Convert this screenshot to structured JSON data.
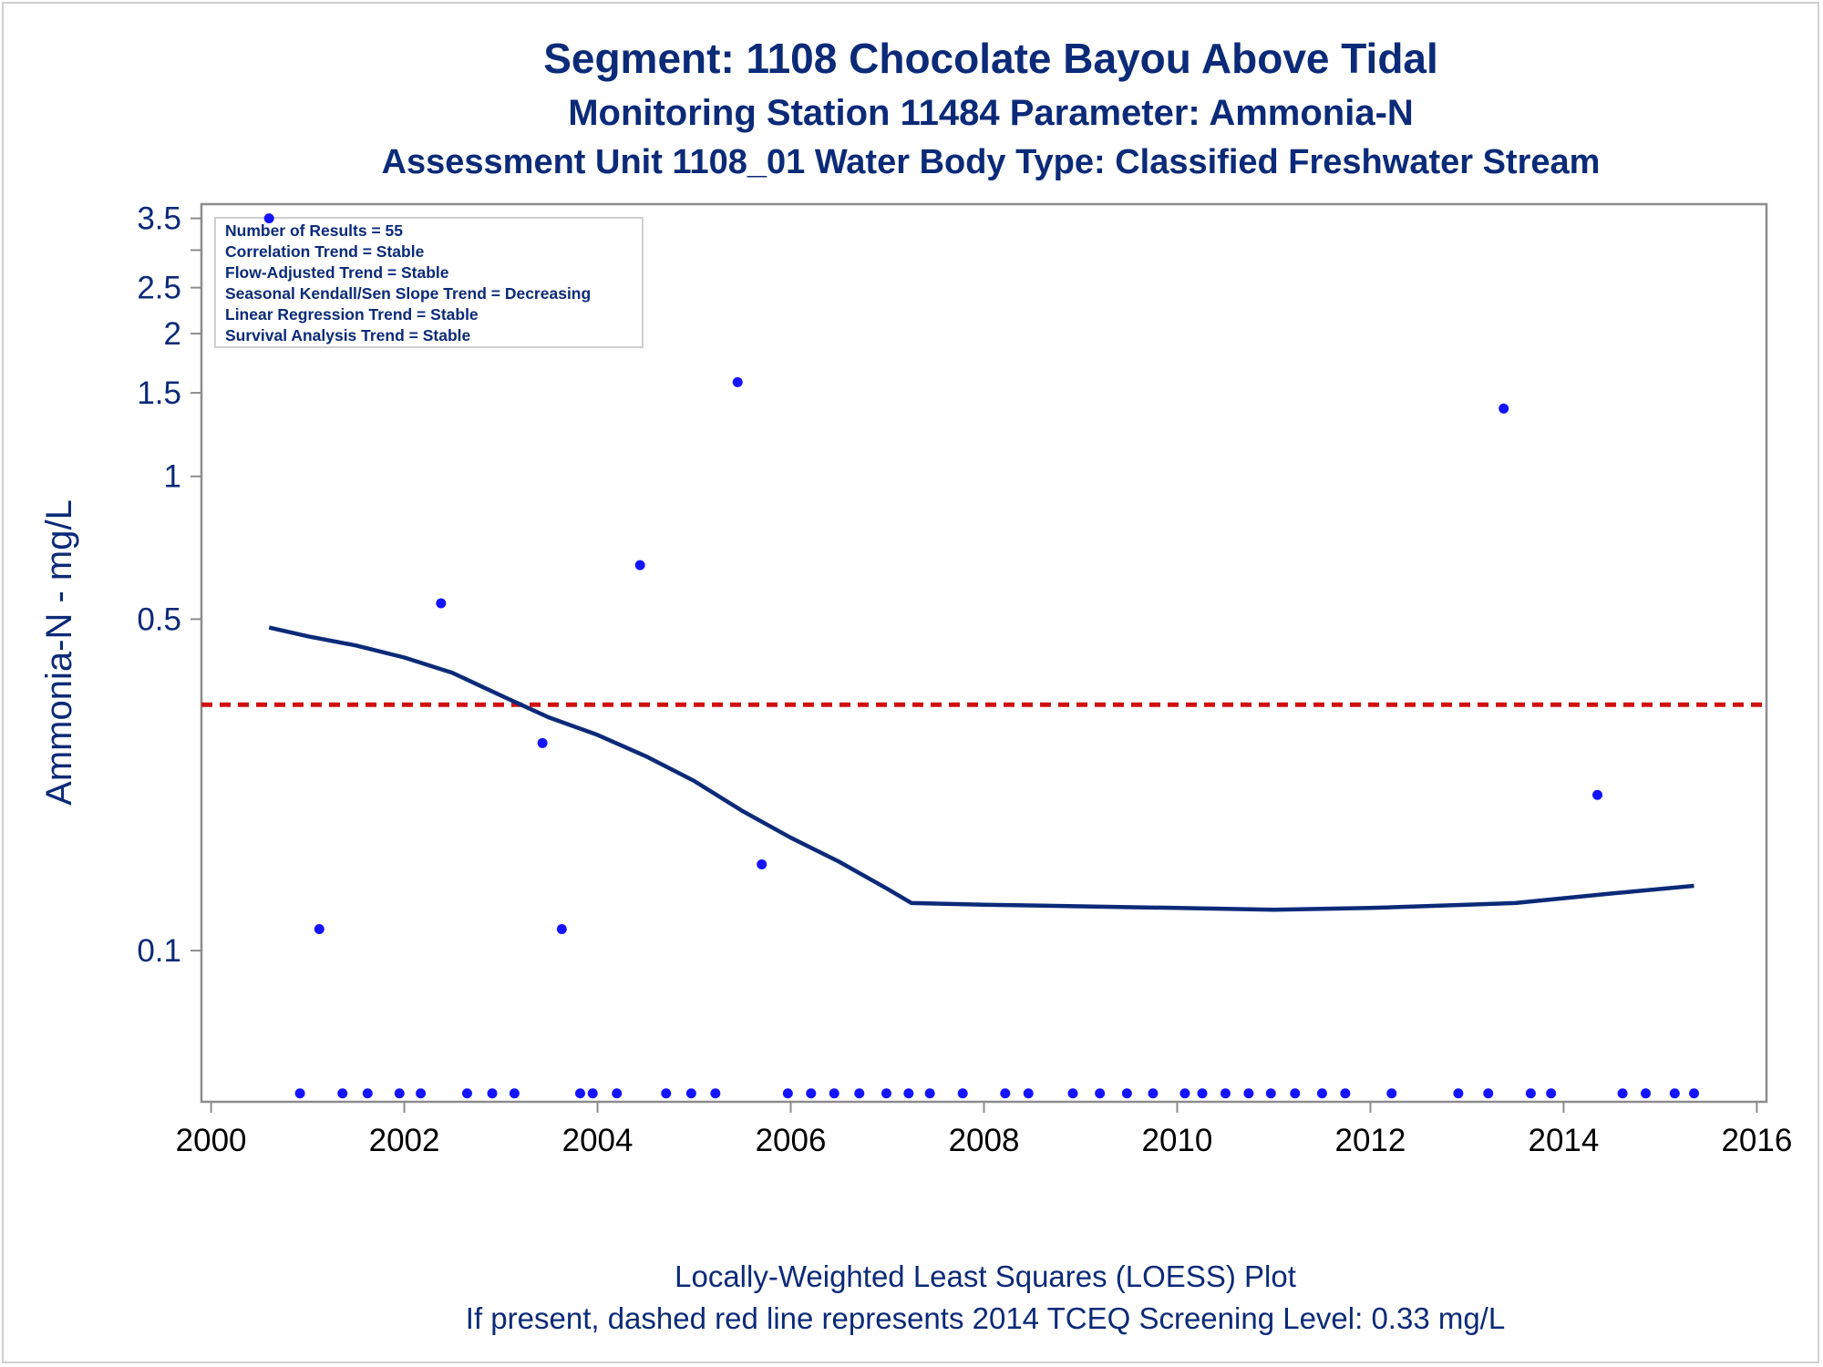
{
  "colors": {
    "text": "#0b2a78",
    "axis": "#8c8c8c",
    "points": "#1414ff",
    "loess": "#0b2a78",
    "screening": "#d01010",
    "tick_text": "#000000",
    "frame": "#d0d0d0"
  },
  "chart_data": {
    "type": "scatter",
    "titles": [
      "Segment: 1108  Chocolate Bayou Above Tidal",
      "Monitoring Station 11484 Parameter: Ammonia-N",
      "Assessment Unit 1108_01   Water Body Type: Classified Freshwater Stream"
    ],
    "ylabel": "Ammonia-N - mg/L",
    "xlabel": "",
    "footnotes": [
      "Locally-Weighted Least Squares (LOESS) Plot",
      "If present, dashed red line represents 2014 TCEQ Screening Level: 0.33 mg/L"
    ],
    "stats_box": [
      "Number of Results = 55",
      "Correlation Trend = Stable",
      "Flow-Adjusted Trend = Stable",
      "Seasonal Kendall/Sen Slope Trend = Decreasing",
      "Linear Regression Trend = Stable",
      "Survival Analysis Trend = Stable"
    ],
    "y_scale": "log",
    "xlim": [
      1999.9,
      2016.1
    ],
    "ylim": [
      0.048,
      3.75
    ],
    "x_ticks": [
      2000,
      2002,
      2004,
      2006,
      2008,
      2010,
      2012,
      2014,
      2016
    ],
    "x_tick_labels": [
      "2000",
      "2002",
      "2004",
      "2006",
      "2008",
      "2010",
      "2012",
      "2014",
      "2016"
    ],
    "y_ticks": [
      0.1,
      0.5,
      1,
      1.5,
      2,
      2.5,
      3.5
    ],
    "y_tick_labels": [
      "0.1",
      "0.5",
      "1",
      "1.5",
      "2",
      "2.5",
      "3.5"
    ],
    "y_minor_ticks": [
      3
    ],
    "grid": false,
    "legend": "top-left inset",
    "screening_level": 0.33,
    "points": [
      {
        "x": 2000.6,
        "y": 3.5
      },
      {
        "x": 2002.38,
        "y": 0.54
      },
      {
        "x": 2004.44,
        "y": 0.65
      },
      {
        "x": 2005.45,
        "y": 1.58
      },
      {
        "x": 2013.38,
        "y": 1.39
      },
      {
        "x": 2003.43,
        "y": 0.274
      },
      {
        "x": 2014.35,
        "y": 0.213
      },
      {
        "x": 2005.7,
        "y": 0.152
      },
      {
        "x": 2001.12,
        "y": 0.111
      },
      {
        "x": 2003.63,
        "y": 0.111
      },
      {
        "x": 2000.92,
        "y": 0.05
      },
      {
        "x": 2001.36,
        "y": 0.05
      },
      {
        "x": 2001.62,
        "y": 0.05
      },
      {
        "x": 2001.95,
        "y": 0.05
      },
      {
        "x": 2002.17,
        "y": 0.05
      },
      {
        "x": 2002.65,
        "y": 0.05
      },
      {
        "x": 2002.91,
        "y": 0.05
      },
      {
        "x": 2003.14,
        "y": 0.05
      },
      {
        "x": 2003.82,
        "y": 0.05
      },
      {
        "x": 2003.95,
        "y": 0.05
      },
      {
        "x": 2004.2,
        "y": 0.05
      },
      {
        "x": 2004.71,
        "y": 0.05
      },
      {
        "x": 2004.97,
        "y": 0.05
      },
      {
        "x": 2005.22,
        "y": 0.05
      },
      {
        "x": 2005.97,
        "y": 0.05
      },
      {
        "x": 2006.21,
        "y": 0.05
      },
      {
        "x": 2006.45,
        "y": 0.05
      },
      {
        "x": 2006.71,
        "y": 0.05
      },
      {
        "x": 2006.99,
        "y": 0.05
      },
      {
        "x": 2007.22,
        "y": 0.05
      },
      {
        "x": 2007.44,
        "y": 0.05
      },
      {
        "x": 2007.78,
        "y": 0.05
      },
      {
        "x": 2008.22,
        "y": 0.05
      },
      {
        "x": 2008.46,
        "y": 0.05
      },
      {
        "x": 2008.92,
        "y": 0.05
      },
      {
        "x": 2009.2,
        "y": 0.05
      },
      {
        "x": 2009.48,
        "y": 0.05
      },
      {
        "x": 2009.75,
        "y": 0.05
      },
      {
        "x": 2010.08,
        "y": 0.05
      },
      {
        "x": 2010.26,
        "y": 0.05
      },
      {
        "x": 2010.5,
        "y": 0.05
      },
      {
        "x": 2010.74,
        "y": 0.05
      },
      {
        "x": 2010.97,
        "y": 0.05
      },
      {
        "x": 2011.22,
        "y": 0.05
      },
      {
        "x": 2011.5,
        "y": 0.05
      },
      {
        "x": 2011.74,
        "y": 0.05
      },
      {
        "x": 2012.22,
        "y": 0.05
      },
      {
        "x": 2012.91,
        "y": 0.05
      },
      {
        "x": 2013.22,
        "y": 0.05
      },
      {
        "x": 2013.66,
        "y": 0.05
      },
      {
        "x": 2013.87,
        "y": 0.05
      },
      {
        "x": 2014.61,
        "y": 0.05
      },
      {
        "x": 2014.85,
        "y": 0.05
      },
      {
        "x": 2015.15,
        "y": 0.05
      },
      {
        "x": 2015.35,
        "y": 0.05
      }
    ],
    "loess": [
      {
        "x": 2000.6,
        "y": 0.48
      },
      {
        "x": 2001.0,
        "y": 0.46
      },
      {
        "x": 2001.5,
        "y": 0.44
      },
      {
        "x": 2002.0,
        "y": 0.415
      },
      {
        "x": 2002.5,
        "y": 0.385
      },
      {
        "x": 2003.0,
        "y": 0.345
      },
      {
        "x": 2003.5,
        "y": 0.31
      },
      {
        "x": 2004.0,
        "y": 0.285
      },
      {
        "x": 2004.5,
        "y": 0.257
      },
      {
        "x": 2005.0,
        "y": 0.228
      },
      {
        "x": 2005.5,
        "y": 0.197
      },
      {
        "x": 2006.0,
        "y": 0.173
      },
      {
        "x": 2006.5,
        "y": 0.154
      },
      {
        "x": 2007.0,
        "y": 0.135
      },
      {
        "x": 2007.25,
        "y": 0.126
      },
      {
        "x": 2008.0,
        "y": 0.125
      },
      {
        "x": 2009.0,
        "y": 0.124
      },
      {
        "x": 2010.0,
        "y": 0.123
      },
      {
        "x": 2011.0,
        "y": 0.122
      },
      {
        "x": 2012.0,
        "y": 0.123
      },
      {
        "x": 2013.0,
        "y": 0.125
      },
      {
        "x": 2013.5,
        "y": 0.126
      },
      {
        "x": 2014.0,
        "y": 0.129
      },
      {
        "x": 2014.5,
        "y": 0.132
      },
      {
        "x": 2015.35,
        "y": 0.137
      }
    ]
  }
}
